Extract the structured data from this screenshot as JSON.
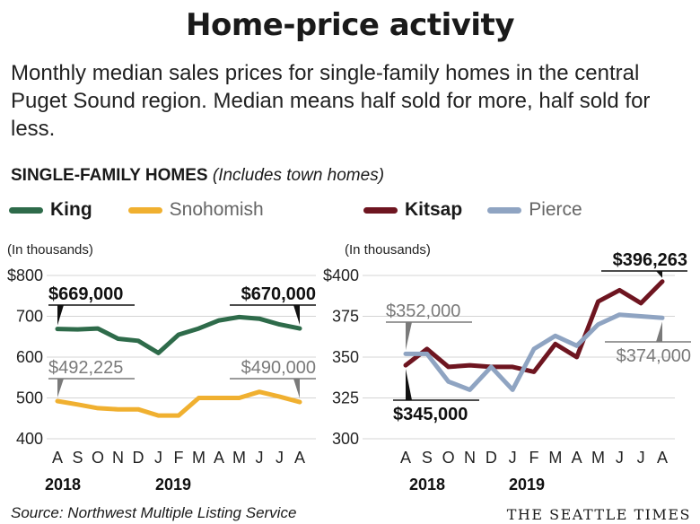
{
  "title": "Home-price activity",
  "subtitle": "Monthly median sales prices for single-family homes in the central Puget Sound region. Median means half sold for more, half sold for less.",
  "section_heading_bold": "SINGLE-FAMILY HOMES",
  "section_heading_italic": "(Includes town homes)",
  "source": "Source: Northwest Multiple Listing Service",
  "credit": "THE SEATTLE TIMES",
  "colors": {
    "King": "#2e6b4a",
    "Snohomish": "#f0b030",
    "Kitsap": "#6e1520",
    "Pierce": "#8fa4c2"
  },
  "legend_left": [
    "King",
    "Snohomish"
  ],
  "legend_right": [
    "Kitsap",
    "Pierce"
  ],
  "chart_data": [
    {
      "type": "line",
      "unit_note": "(In thousands)",
      "categories": [
        "A",
        "S",
        "O",
        "N",
        "D",
        "J",
        "F",
        "M",
        "A",
        "M",
        "J",
        "J",
        "A"
      ],
      "year_labels": [
        "2018",
        "2019"
      ],
      "ylim": [
        400,
        800
      ],
      "yticks": [
        400,
        500,
        600,
        700,
        800
      ],
      "ytick_labels": [
        "400",
        "500",
        "600",
        "700",
        "$800"
      ],
      "series": [
        {
          "name": "King",
          "values": [
            669,
            668,
            670,
            645,
            640,
            610,
            655,
            670,
            690,
            698,
            694,
            680,
            670
          ]
        },
        {
          "name": "Snohomish",
          "values": [
            492.225,
            484,
            475,
            472,
            472,
            457,
            457,
            500,
            500,
            500,
            515,
            503,
            490
          ]
        }
      ],
      "annotations": [
        {
          "series": "King",
          "index": 0,
          "label": "$669,000"
        },
        {
          "series": "King",
          "index": 12,
          "label": "$670,000"
        },
        {
          "series": "Snohomish",
          "index": 0,
          "label": "$492,225"
        },
        {
          "series": "Snohomish",
          "index": 12,
          "label": "$490,000"
        }
      ]
    },
    {
      "type": "line",
      "unit_note": "(In thousands)",
      "categories": [
        "A",
        "S",
        "O",
        "N",
        "D",
        "J",
        "F",
        "M",
        "A",
        "M",
        "J",
        "J",
        "A"
      ],
      "year_labels": [
        "2018",
        "2019"
      ],
      "ylim": [
        300,
        400
      ],
      "yticks": [
        300,
        325,
        350,
        375,
        400
      ],
      "ytick_labels": [
        "300",
        "325",
        "350",
        "375",
        "$400"
      ],
      "series": [
        {
          "name": "Kitsap",
          "values": [
            345,
            355,
            344,
            345,
            344,
            344,
            341,
            358,
            350,
            384,
            391,
            383,
            396.263
          ]
        },
        {
          "name": "Pierce",
          "values": [
            352,
            352,
            335,
            330,
            344,
            330,
            355,
            363,
            357,
            370,
            376,
            375,
            374
          ]
        }
      ],
      "annotations": [
        {
          "series": "Pierce",
          "index": 0,
          "label": "$352,000"
        },
        {
          "series": "Kitsap",
          "index": 0,
          "label": "$345,000"
        },
        {
          "series": "Kitsap",
          "index": 12,
          "label": "$396,263"
        },
        {
          "series": "Pierce",
          "index": 12,
          "label": "$374,000"
        }
      ]
    }
  ]
}
